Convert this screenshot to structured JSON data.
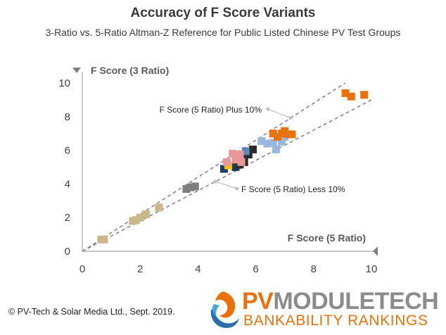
{
  "chart_data": {
    "type": "scatter",
    "title": "Accuracy of F Score Variants",
    "subtitle": "3-Ratio vs. 5-Ratio Altman-Z Reference for Public Listed Chinese PV Test Groups",
    "xlabel": "F Score (5 Ratio)",
    "ylabel": "F Score (3 Ratio)",
    "xlim": [
      0,
      10
    ],
    "ylim": [
      0,
      10
    ],
    "xticks": [
      "0",
      "2",
      "4",
      "6",
      "8",
      "10"
    ],
    "yticks": [
      "0",
      "2",
      "4",
      "6",
      "8",
      "10"
    ],
    "grid": false,
    "series": [
      {
        "color": "#c8b88a",
        "points": [
          [
            0.65,
            0.7
          ],
          [
            0.75,
            0.7
          ],
          [
            1.75,
            1.8
          ],
          [
            1.85,
            1.85
          ],
          [
            2.0,
            2.0
          ],
          [
            2.2,
            2.2
          ],
          [
            2.65,
            2.6
          ]
        ]
      },
      {
        "color": "#7f7f7f",
        "points": [
          [
            3.6,
            3.7
          ],
          [
            3.75,
            3.8
          ],
          [
            3.9,
            3.85
          ]
        ]
      },
      {
        "color": "#1f3a5f",
        "points": [
          [
            4.9,
            4.9
          ],
          [
            5.3,
            5.0
          ],
          [
            5.55,
            5.6
          ]
        ]
      },
      {
        "color": "#2a2a2a",
        "points": [
          [
            5.45,
            5.15
          ],
          [
            5.6,
            5.3
          ],
          [
            5.75,
            5.75
          ],
          [
            5.9,
            6.05
          ]
        ]
      },
      {
        "color": "#f2c200",
        "points": [
          [
            5.05,
            5.1
          ]
        ]
      },
      {
        "color": "#5b87b8",
        "points": [
          [
            5.65,
            5.95
          ]
        ]
      },
      {
        "color": "#e8979a",
        "points": [
          [
            5.0,
            5.3
          ],
          [
            5.2,
            5.8
          ],
          [
            5.3,
            5.45
          ],
          [
            5.45,
            5.75
          ],
          [
            5.5,
            5.3
          ]
        ]
      },
      {
        "color": "#9ab7dd",
        "points": [
          [
            6.2,
            6.55
          ],
          [
            6.4,
            6.4
          ],
          [
            6.6,
            6.45
          ],
          [
            6.7,
            6.05
          ],
          [
            6.9,
            6.5
          ],
          [
            7.0,
            6.8
          ]
        ]
      },
      {
        "color": "#e8730e",
        "points": [
          [
            6.6,
            7.0
          ],
          [
            6.75,
            6.8
          ],
          [
            6.9,
            7.0
          ],
          [
            7.0,
            7.15
          ],
          [
            7.15,
            6.95
          ],
          [
            7.25,
            6.95
          ],
          [
            9.1,
            9.4
          ],
          [
            9.3,
            9.2
          ],
          [
            9.75,
            9.3
          ]
        ]
      }
    ],
    "reference_lines": [
      {
        "label": "F Score (5 Ratio) Plus 10%",
        "slope": 1.1,
        "style": "dashed"
      },
      {
        "label": "F Score (5 Ratio) Less 10%",
        "slope": 0.9,
        "style": "dashed"
      }
    ]
  },
  "footer": {
    "copyright": "© PV-Tech & Solar Media Ltd., Sept. 2019.",
    "brand_pv": "PV",
    "brand_mt": "MODULETECH",
    "brand_sub": "BANKABILITY RANKINGS"
  },
  "colors": {
    "accent": "#e8730e",
    "text": "#3a3a3a",
    "axis": "#a6a6a6",
    "reference": "#808080"
  }
}
